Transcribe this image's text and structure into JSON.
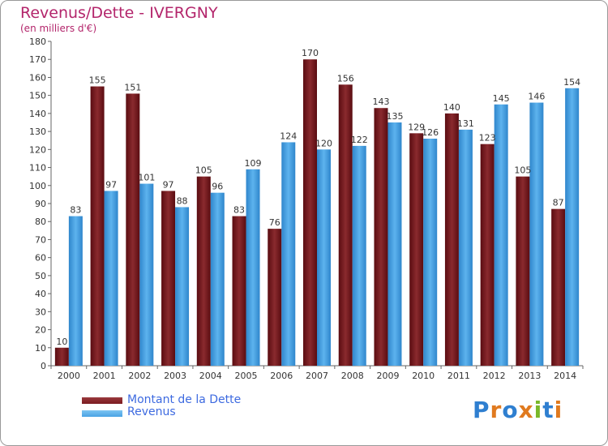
{
  "title": "Revenus/Dette - IVERGNY",
  "subtitle": "(en milliers d'€)",
  "logo": "Proxiti",
  "colors": {
    "dette": "#7a1a1f",
    "revenus": "#4aa3e4",
    "title": "#b3256b",
    "legend_text": "#3d6ae0"
  },
  "chart_data": {
    "type": "bar",
    "title": "Revenus/Dette - IVERGNY",
    "subtitle": "(en milliers d'€)",
    "categories": [
      "2000",
      "2001",
      "2002",
      "2003",
      "2004",
      "2005",
      "2006",
      "2007",
      "2008",
      "2009",
      "2010",
      "2011",
      "2012",
      "2013",
      "2014"
    ],
    "series": [
      {
        "name": "Montant de la Dette",
        "values": [
          10,
          155,
          151,
          97,
          105,
          83,
          76,
          170,
          156,
          143,
          129,
          140,
          123,
          105,
          87
        ]
      },
      {
        "name": "Revenus",
        "values": [
          83,
          97,
          101,
          88,
          96,
          109,
          124,
          120,
          122,
          135,
          126,
          131,
          145,
          146,
          154
        ]
      }
    ],
    "ylim": [
      0,
      180
    ],
    "yticks": [
      0,
      10,
      20,
      30,
      40,
      50,
      60,
      70,
      80,
      90,
      100,
      110,
      120,
      130,
      140,
      150,
      160,
      170,
      180
    ],
    "grid": false,
    "legend": "bottom-left"
  }
}
